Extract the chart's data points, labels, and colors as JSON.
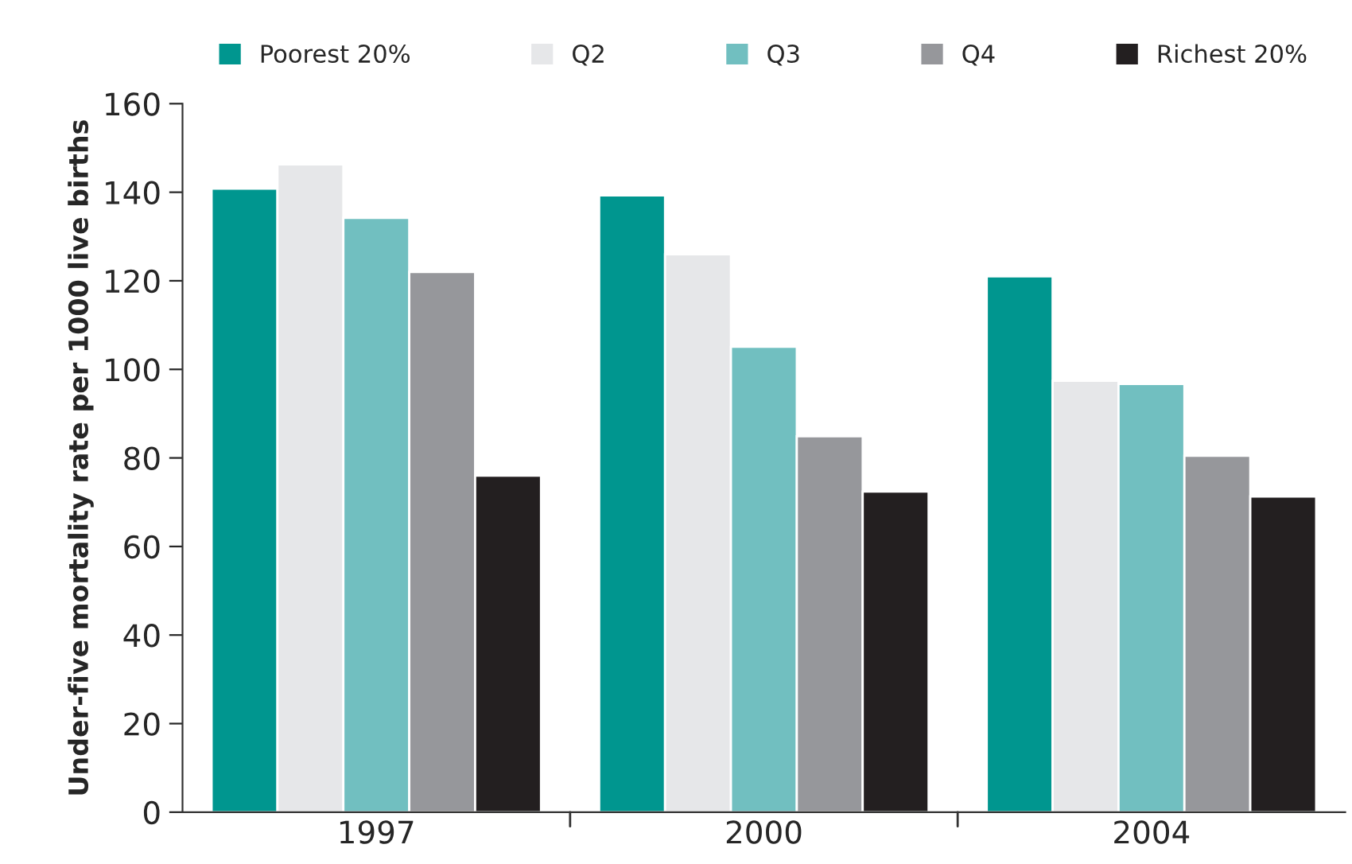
{
  "chart_data": {
    "type": "bar",
    "ylabel": "Under-five mortality rate per 1000 live births",
    "categories": [
      "1997",
      "2000",
      "2004"
    ],
    "series": [
      {
        "name": "Poorest 20%",
        "color": "#00968f",
        "values": [
          140.8,
          139.3,
          121
        ]
      },
      {
        "name": "Q2",
        "color": "#e6e7e9",
        "values": [
          146.3,
          126,
          97.4
        ]
      },
      {
        "name": "Q3",
        "color": "#71bfc0",
        "values": [
          134.2,
          105.1,
          96.7
        ]
      },
      {
        "name": "Q4",
        "color": "#96979b",
        "values": [
          122,
          84.9,
          80.5
        ]
      },
      {
        "name": "Richest 20%",
        "color": "#231f20",
        "values": [
          76,
          72.4,
          71.3
        ]
      }
    ],
    "ylim": [
      0,
      160
    ],
    "yticks": [
      0,
      20,
      40,
      60,
      80,
      100,
      120,
      140,
      160
    ],
    "grid": false,
    "legend": "top"
  }
}
